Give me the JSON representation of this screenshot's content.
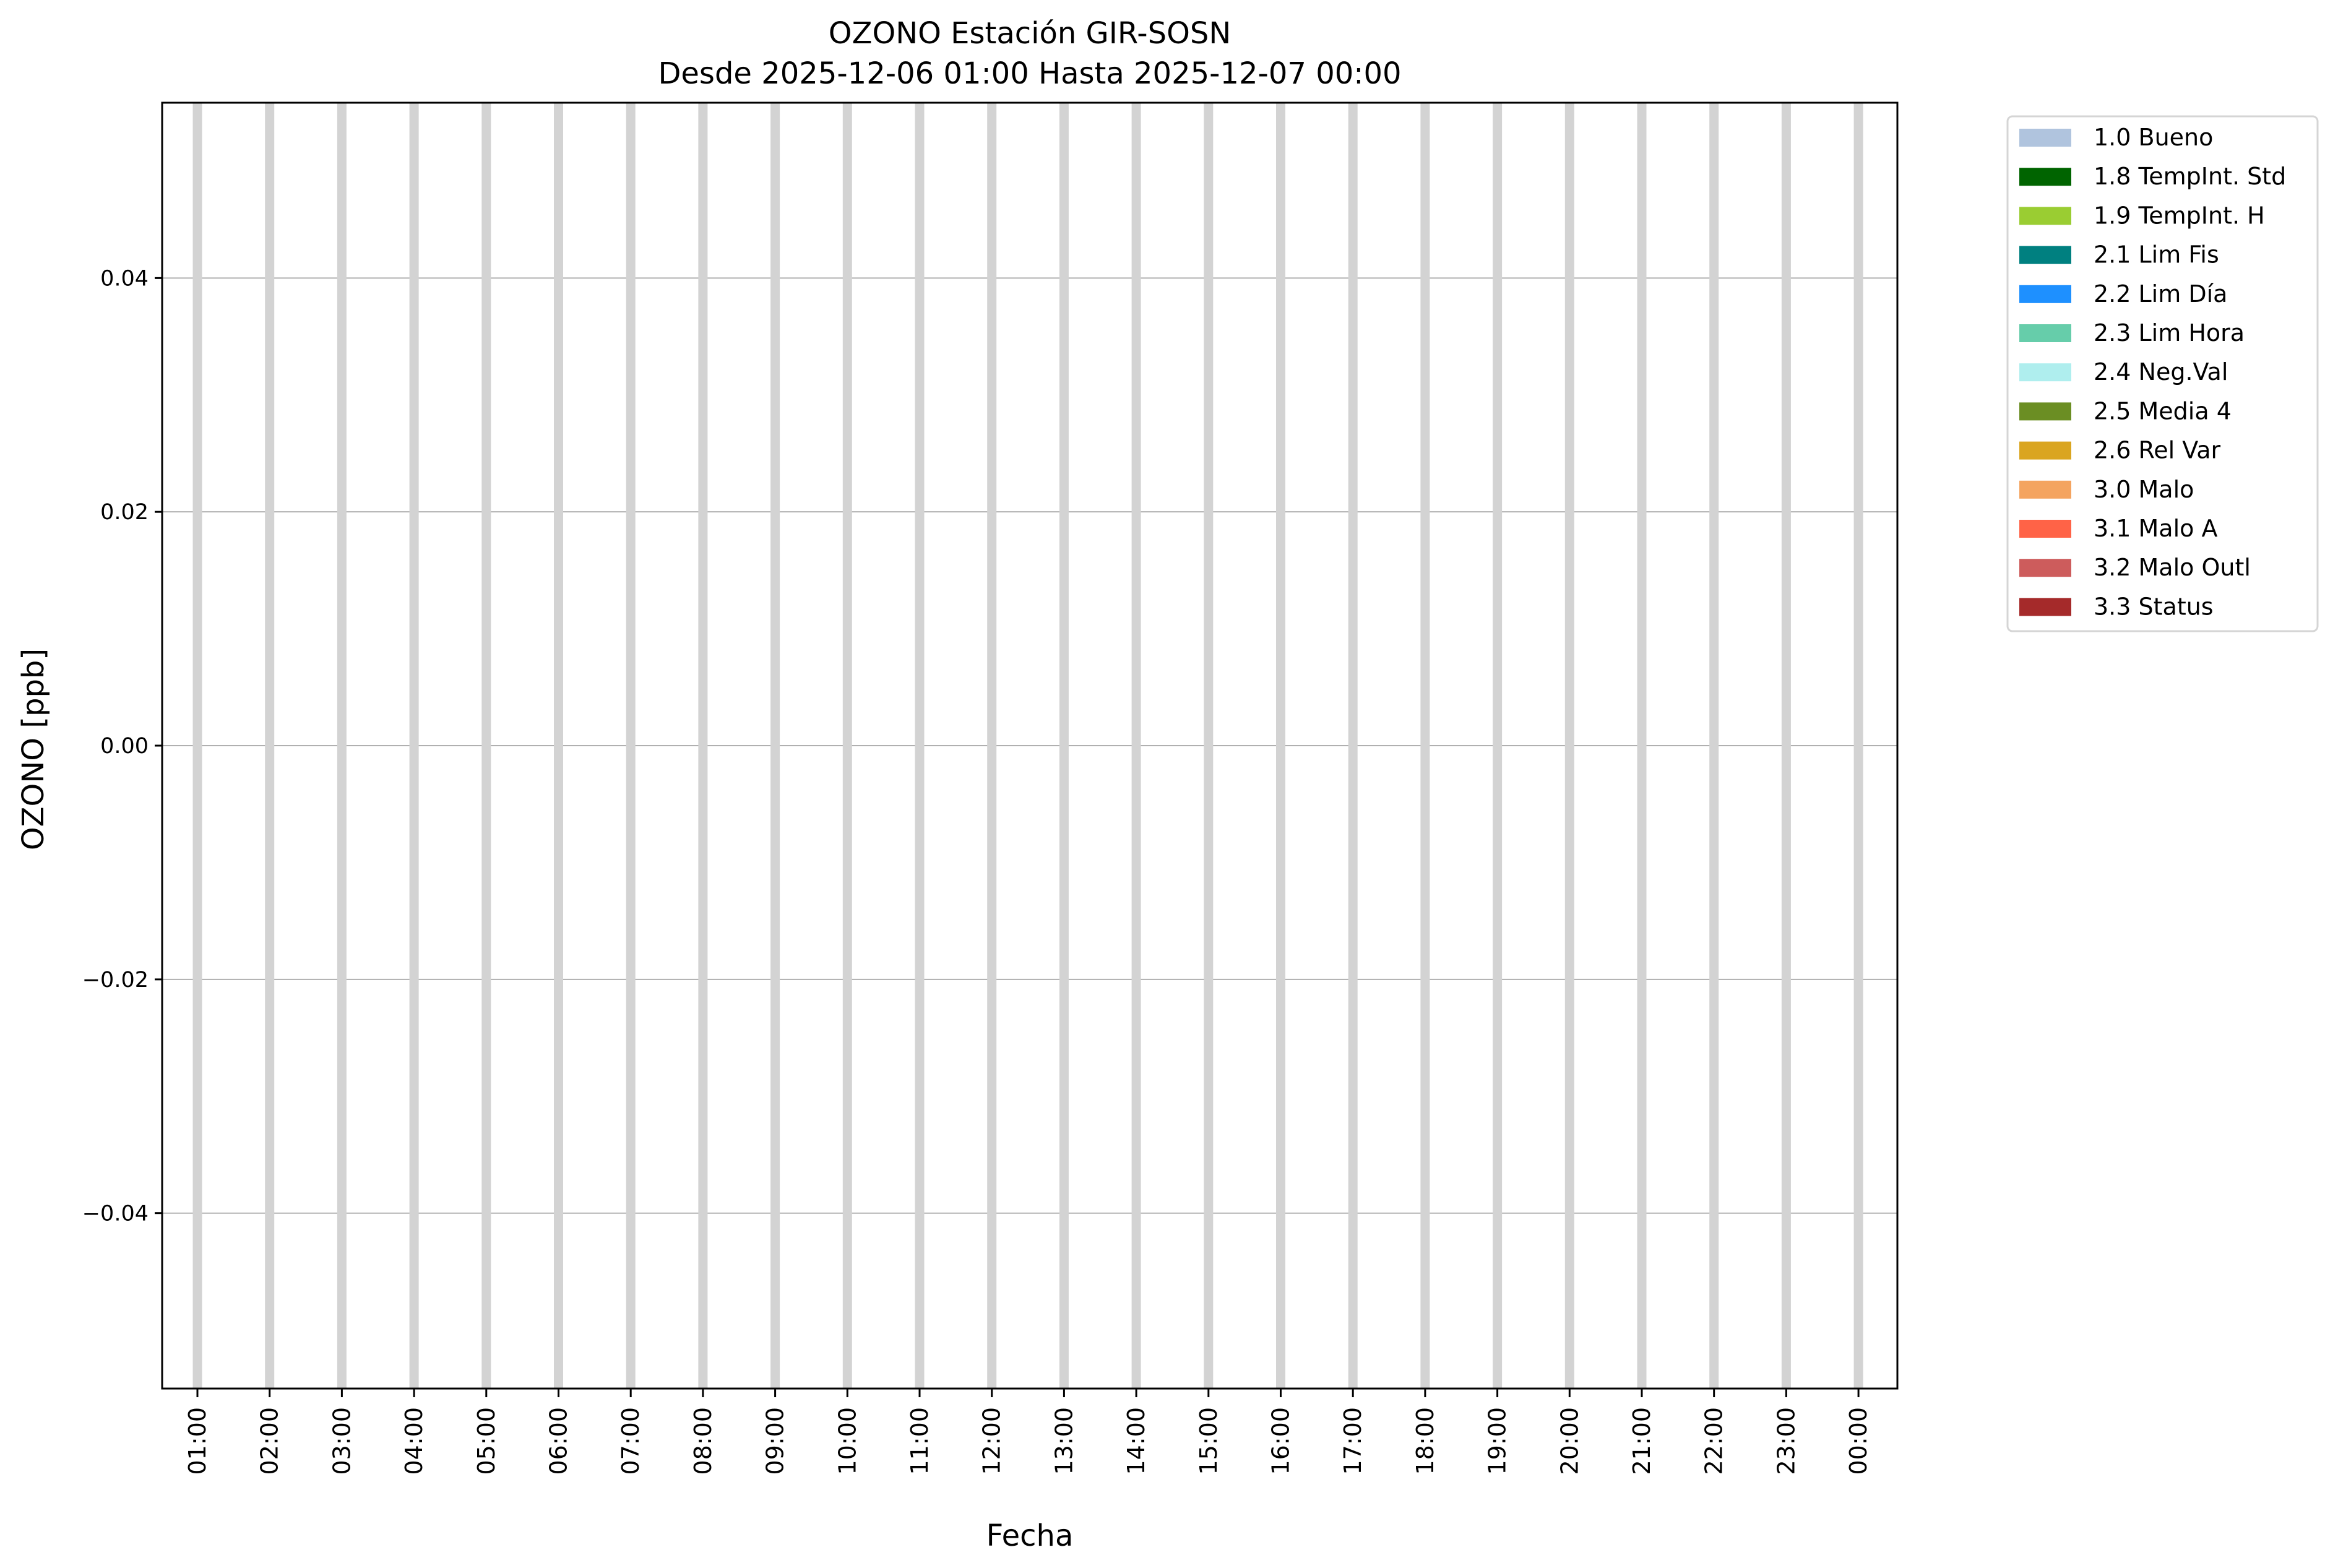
{
  "chart_data": {
    "type": "bar",
    "title": "OZONO Estación GIR-SOSN",
    "subtitle": "Desde 2025-12-06 01:00 Hasta 2025-12-07 00:00",
    "xlabel": "Fecha",
    "ylabel": "OZONO [ppb]",
    "categories": [
      "01:00",
      "02:00",
      "03:00",
      "04:00",
      "05:00",
      "06:00",
      "07:00",
      "08:00",
      "09:00",
      "10:00",
      "11:00",
      "12:00",
      "13:00",
      "14:00",
      "15:00",
      "16:00",
      "17:00",
      "18:00",
      "19:00",
      "20:00",
      "21:00",
      "22:00",
      "23:00",
      "00:00"
    ],
    "values": [
      0,
      0,
      0,
      0,
      0,
      0,
      0,
      0,
      0,
      0,
      0,
      0,
      0,
      0,
      0,
      0,
      0,
      0,
      0,
      0,
      0,
      0,
      0,
      0
    ],
    "ylim": [
      -0.055,
      0.055
    ],
    "yticks": [
      -0.04,
      -0.02,
      0.0,
      0.02,
      0.04
    ],
    "ytick_labels": [
      "−0.04",
      "−0.02",
      "0.00",
      "0.02",
      "0.04"
    ],
    "grid": true,
    "bar_color": "#d3d3d3",
    "legend_placement": "outside-top-right",
    "legend": [
      {
        "label": "1.0 Bueno",
        "color": "#b0c4de"
      },
      {
        "label": "1.8 TempInt. Std",
        "color": "#006400"
      },
      {
        "label": "1.9 TempInt. H",
        "color": "#9acd32"
      },
      {
        "label": "2.1 Lim Fis",
        "color": "#008080"
      },
      {
        "label": "2.2 Lim Día",
        "color": "#1e90ff"
      },
      {
        "label": "2.3 Lim Hora",
        "color": "#66cdaa"
      },
      {
        "label": "2.4 Neg.Val",
        "color": "#afeeee"
      },
      {
        "label": "2.5 Media 4",
        "color": "#6b8e23"
      },
      {
        "label": "2.6 Rel Var",
        "color": "#daa520"
      },
      {
        "label": "3.0 Malo",
        "color": "#f4a460"
      },
      {
        "label": "3.1 Malo A",
        "color": "#ff6347"
      },
      {
        "label": "3.2 Malo Outl",
        "color": "#cd5c5c"
      },
      {
        "label": "3.3 Status",
        "color": "#a52a2a"
      }
    ]
  }
}
